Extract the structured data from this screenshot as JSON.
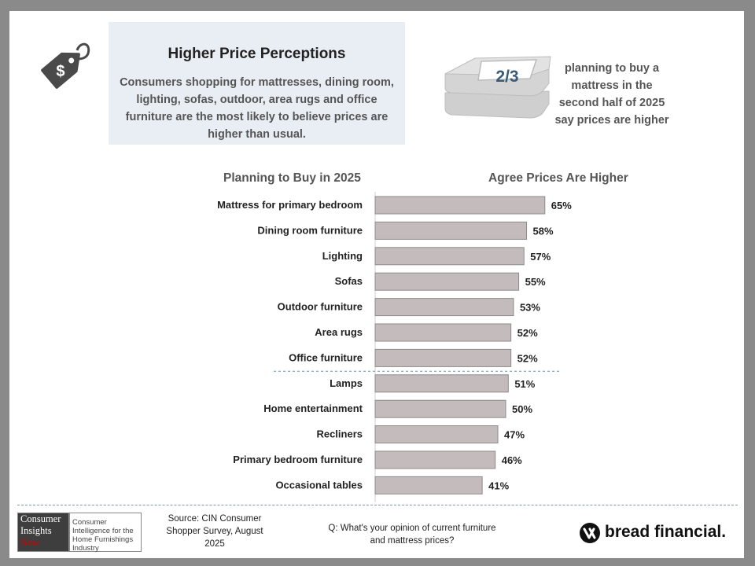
{
  "headline": {
    "title": "Higher Price Perceptions",
    "body": "Consumers shopping for mattresses, dining room, lighting, sofas, outdoor, area rugs and office furniture are the most likely to believe prices are higher than usual."
  },
  "stat": {
    "number": "2/3",
    "text": "planning to buy a mattress in the second half of 2025 say prices are higher"
  },
  "chart_data": {
    "type": "bar",
    "orientation": "horizontal",
    "column_headers": [
      "Planning to Buy in 2025",
      "Agree Prices Are Higher"
    ],
    "categories": [
      "Mattress for primary bedroom",
      "Dining room furniture",
      "Lighting",
      "Sofas",
      "Outdoor furniture",
      "Area rugs",
      "Office furniture",
      "Lamps",
      "Home entertainment",
      "Recliners",
      "Primary bedroom furniture",
      "Occasional tables"
    ],
    "values": [
      65,
      58,
      57,
      55,
      53,
      52,
      52,
      51,
      50,
      47,
      46,
      41
    ],
    "value_labels": [
      "65%",
      "58%",
      "57%",
      "55%",
      "53%",
      "52%",
      "52%",
      "51%",
      "50%",
      "47%",
      "46%",
      "41%"
    ],
    "divider_after_index": 6,
    "bar_color": "#c4bcbc",
    "xlim": [
      0,
      100
    ]
  },
  "footer": {
    "logo_left_lines": [
      "Consumer",
      "Insights",
      "Now"
    ],
    "logo_right_text": "Consumer Intelligence for the Home Furnishings Industry",
    "source": "Source: CIN Consumer Shopper Survey, August 2025",
    "question": "Q: What's your opinion of current furniture and mattress prices?",
    "brand": "bread financial."
  },
  "colors": {
    "headline_bg": "#e8eef3",
    "stat_number": "#3a5a7a",
    "divider": "#7a9ab0",
    "frame": "#8a8a8a"
  }
}
